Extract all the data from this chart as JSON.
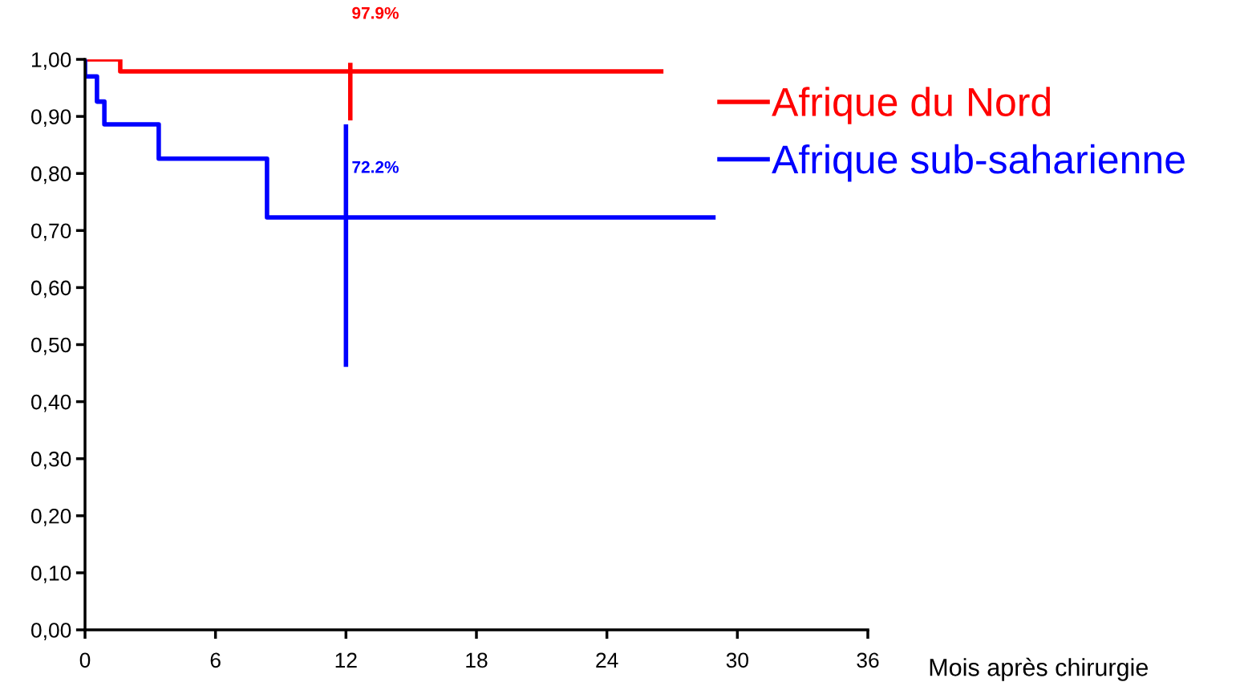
{
  "chart_data": {
    "type": "step",
    "xlabel": "Mois après chirurgie",
    "xlim": [
      0,
      36
    ],
    "xticks": [
      0,
      6,
      12,
      18,
      24,
      30,
      36
    ],
    "ylim": [
      0,
      1
    ],
    "yticks": [
      {
        "value": 0,
        "label": "0,00"
      },
      {
        "value": 0.1,
        "label": "0,10"
      },
      {
        "value": 0.2,
        "label": "0,20"
      },
      {
        "value": 0.3,
        "label": "0,30"
      },
      {
        "value": 0.4,
        "label": "0,40"
      },
      {
        "value": 0.5,
        "label": "0,50"
      },
      {
        "value": 0.6,
        "label": "0,60"
      },
      {
        "value": 0.7,
        "label": "0,70"
      },
      {
        "value": 0.8,
        "label": "0,80"
      },
      {
        "value": 0.9,
        "label": "0,90"
      },
      {
        "value": 1.0,
        "label": "1,00"
      }
    ],
    "grid": false,
    "legend": "right",
    "marker": "none",
    "line_style": "solid",
    "series": [
      {
        "name": "Afrique du Nord",
        "color": "#ff0000",
        "x": [
          0,
          1.62,
          26.6
        ],
        "values": [
          1.0,
          0.979,
          0.979
        ]
      },
      {
        "name": "Afrique sub-saharienne",
        "color": "#0000ff",
        "x": [
          0,
          0,
          0.55,
          0.89,
          3.39,
          8.37,
          29.0
        ],
        "values": [
          1.0,
          0.97,
          0.926,
          0.886,
          0.826,
          0.723,
          0.723
        ]
      },
      {
        "type": "line",
        "color": "#ff0000",
        "x": [
          12.2,
          12.2
        ],
        "values": [
          0.994,
          0.893
        ]
      },
      {
        "type": "line",
        "color": "#0000ff",
        "x": [
          12.0,
          12.0
        ],
        "values": [
          0.886,
          0.461
        ]
      }
    ],
    "annotations": [
      "97.9%",
      "72.2%"
    ]
  }
}
